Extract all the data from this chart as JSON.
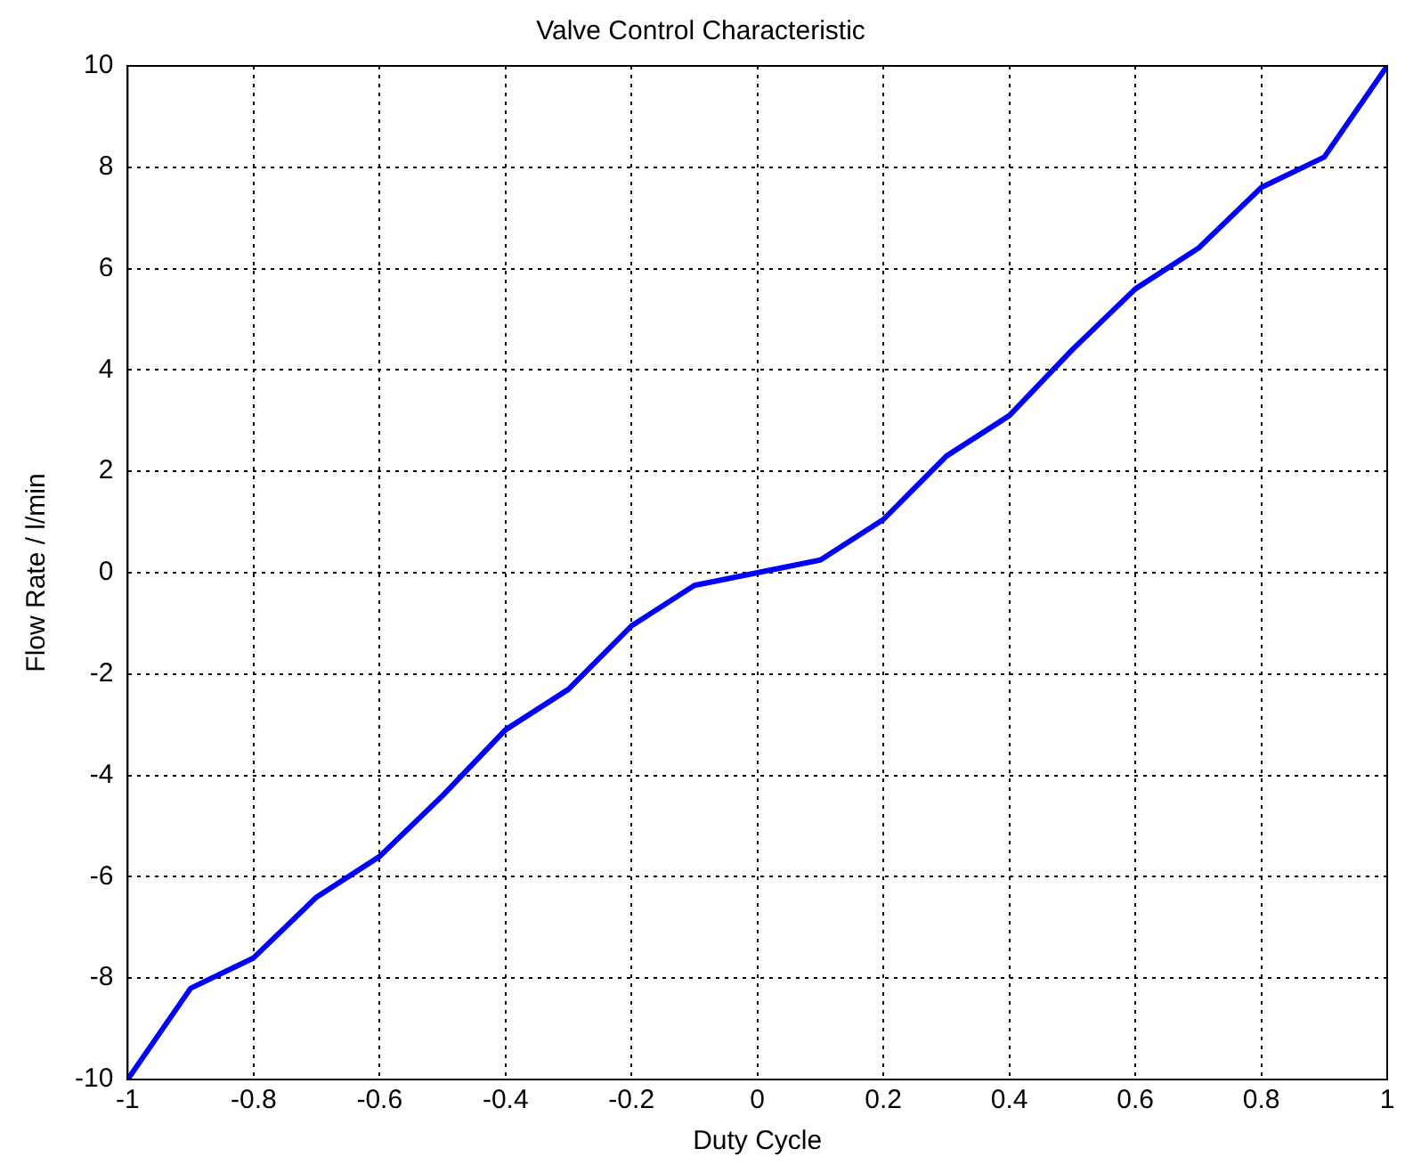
{
  "chart_data": {
    "type": "line",
    "title": "Valve Control Characteristic",
    "xlabel": "Duty Cycle",
    "ylabel": "Flow Rate / l/min",
    "x": [
      -1,
      -0.9,
      -0.8,
      -0.7,
      -0.6,
      -0.5,
      -0.4,
      -0.3,
      -0.2,
      -0.1,
      0,
      0.1,
      0.2,
      0.3,
      0.4,
      0.5,
      0.6,
      0.7,
      0.8,
      0.9,
      1
    ],
    "series": [
      {
        "color": "#0000ff",
        "values": [
          -10,
          -8.2,
          -7.6,
          -6.4,
          -5.6,
          -4.4,
          -3.1,
          -2.3,
          -1.05,
          -0.25,
          0,
          0.25,
          1.05,
          2.3,
          3.1,
          4.4,
          5.6,
          6.4,
          7.6,
          8.2,
          10
        ]
      }
    ],
    "xlim": [
      -1,
      1
    ],
    "xticks": [
      -1,
      -0.8,
      -0.6,
      -0.4,
      -0.2,
      0,
      0.2,
      0.4,
      0.6,
      0.8,
      1
    ],
    "ylim": [
      -10,
      10
    ],
    "yticks": [
      -10,
      -8,
      -6,
      -4,
      -2,
      0,
      2,
      4,
      6,
      8,
      10
    ],
    "grid": true,
    "legend": false,
    "marker": "none",
    "line_style": "solid"
  }
}
